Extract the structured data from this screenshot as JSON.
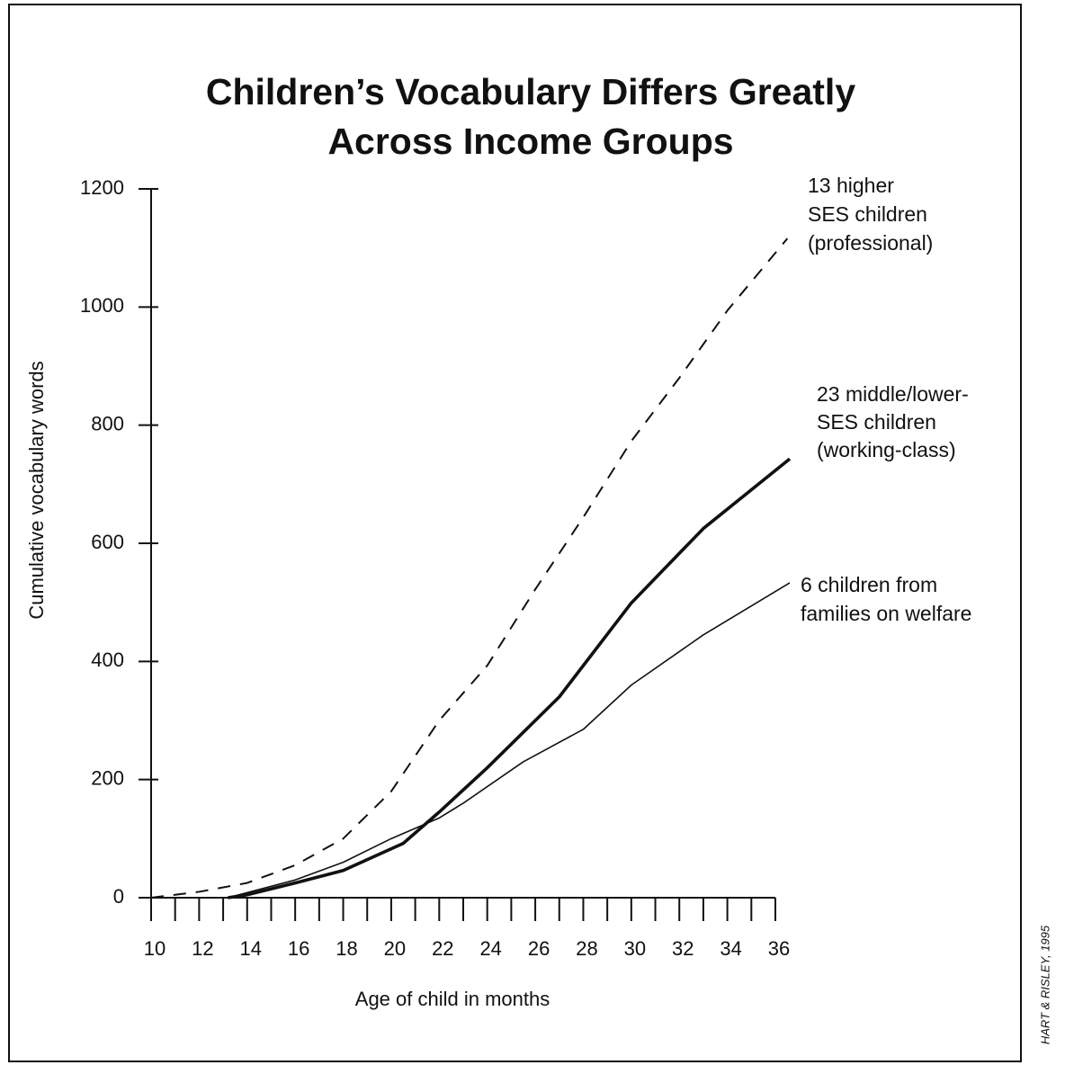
{
  "chart_data": {
    "type": "line",
    "title": [
      "Children’s Vocabulary Differs Greatly",
      "Across Income Groups"
    ],
    "y_label": "Cumulative vocabulary words",
    "x_label": "Age of child in months",
    "xlim": [
      10,
      36
    ],
    "xticks": [
      10,
      12,
      14,
      16,
      18,
      20,
      22,
      24,
      26,
      28,
      30,
      32,
      34,
      36
    ],
    "ylim": [
      0,
      1200
    ],
    "yticks": [
      0,
      200,
      400,
      600,
      800,
      1000,
      1200
    ],
    "series": [
      {
        "color": "#111111",
        "style": "dashed",
        "x": [
          10,
          12,
          14,
          16,
          18,
          19,
          20,
          22,
          24,
          26,
          28,
          30,
          32,
          34,
          36.5
        ],
        "values": [
          0,
          10,
          25,
          55,
          100,
          140,
          180,
          300,
          393,
          522,
          644,
          773,
          880,
          994,
          1116
        ]
      },
      {
        "color": "#111111",
        "style": "bold",
        "x": [
          13.2,
          14,
          16,
          18,
          20.5,
          22,
          24,
          27,
          30,
          33,
          36.6
        ],
        "values": [
          0,
          5,
          25,
          46,
          92,
          145,
          220,
          340,
          499,
          625,
          743
        ]
      },
      {
        "color": "#111111",
        "style": "thin",
        "x": [
          13.2,
          16,
          18,
          20,
          22,
          23,
          25.5,
          28,
          30,
          33,
          36.6
        ],
        "values": [
          0,
          30,
          60,
          100,
          135,
          160,
          230,
          285,
          360,
          445,
          533
        ]
      }
    ],
    "annotations": [
      {
        "lines": [
          "13 higher",
          "SES children",
          "(professional)"
        ]
      },
      {
        "lines": [
          "23 middle/lower-",
          "SES children",
          "(working-class)"
        ]
      },
      {
        "lines": [
          "6 children from",
          "families on welfare"
        ]
      }
    ],
    "credit": "HART & RISLEY, 1995"
  }
}
